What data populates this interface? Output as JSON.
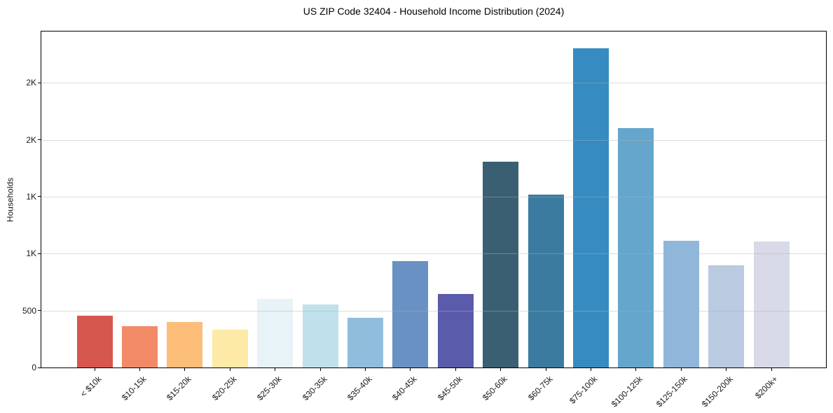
{
  "chart_data": {
    "type": "bar",
    "title": "US ZIP Code 32404 - Household Income Distribution (2024)",
    "xlabel": "",
    "ylabel": "Households",
    "categories": [
      "< $10k",
      "$10-15k",
      "$15-20k",
      "$20-25k",
      "$25-30k",
      "$30-35k",
      "$35-40k",
      "$40-45k",
      "$45-50k",
      "$50-60k",
      "$60-75k",
      "$75-100k",
      "$100-125k",
      "$125-150k",
      "$150-200k",
      "$200k+"
    ],
    "values": [
      455,
      360,
      400,
      330,
      600,
      555,
      435,
      935,
      645,
      1810,
      1520,
      2800,
      2100,
      1110,
      895,
      1105
    ],
    "bar_colors": [
      "#d6574d",
      "#f28a68",
      "#fcbd78",
      "#fdeaa6",
      "#e7f3f7",
      "#c0e0ec",
      "#90bddc",
      "#6991c3",
      "#5a5baa",
      "#3a5f73",
      "#3b7ba0",
      "#368cc1",
      "#64a6cc",
      "#90b7d9",
      "#b9cae1",
      "#d8dae8"
    ],
    "ylim": [
      0,
      2950
    ],
    "yticks": [
      {
        "value": 0,
        "label": "0"
      },
      {
        "value": 500,
        "label": "500"
      },
      {
        "value": 1000,
        "label": "1K"
      },
      {
        "value": 1500,
        "label": "1K"
      },
      {
        "value": 2000,
        "label": "2K"
      },
      {
        "value": 2500,
        "label": "2K"
      }
    ],
    "grid_values": [
      500,
      1000,
      1500,
      2000,
      2500
    ],
    "grid": "horizontal",
    "legend": "none"
  },
  "colors": {
    "background": "#ffffff",
    "spine": "#000000",
    "grid": "#b0b0b0",
    "text": "#191919"
  }
}
